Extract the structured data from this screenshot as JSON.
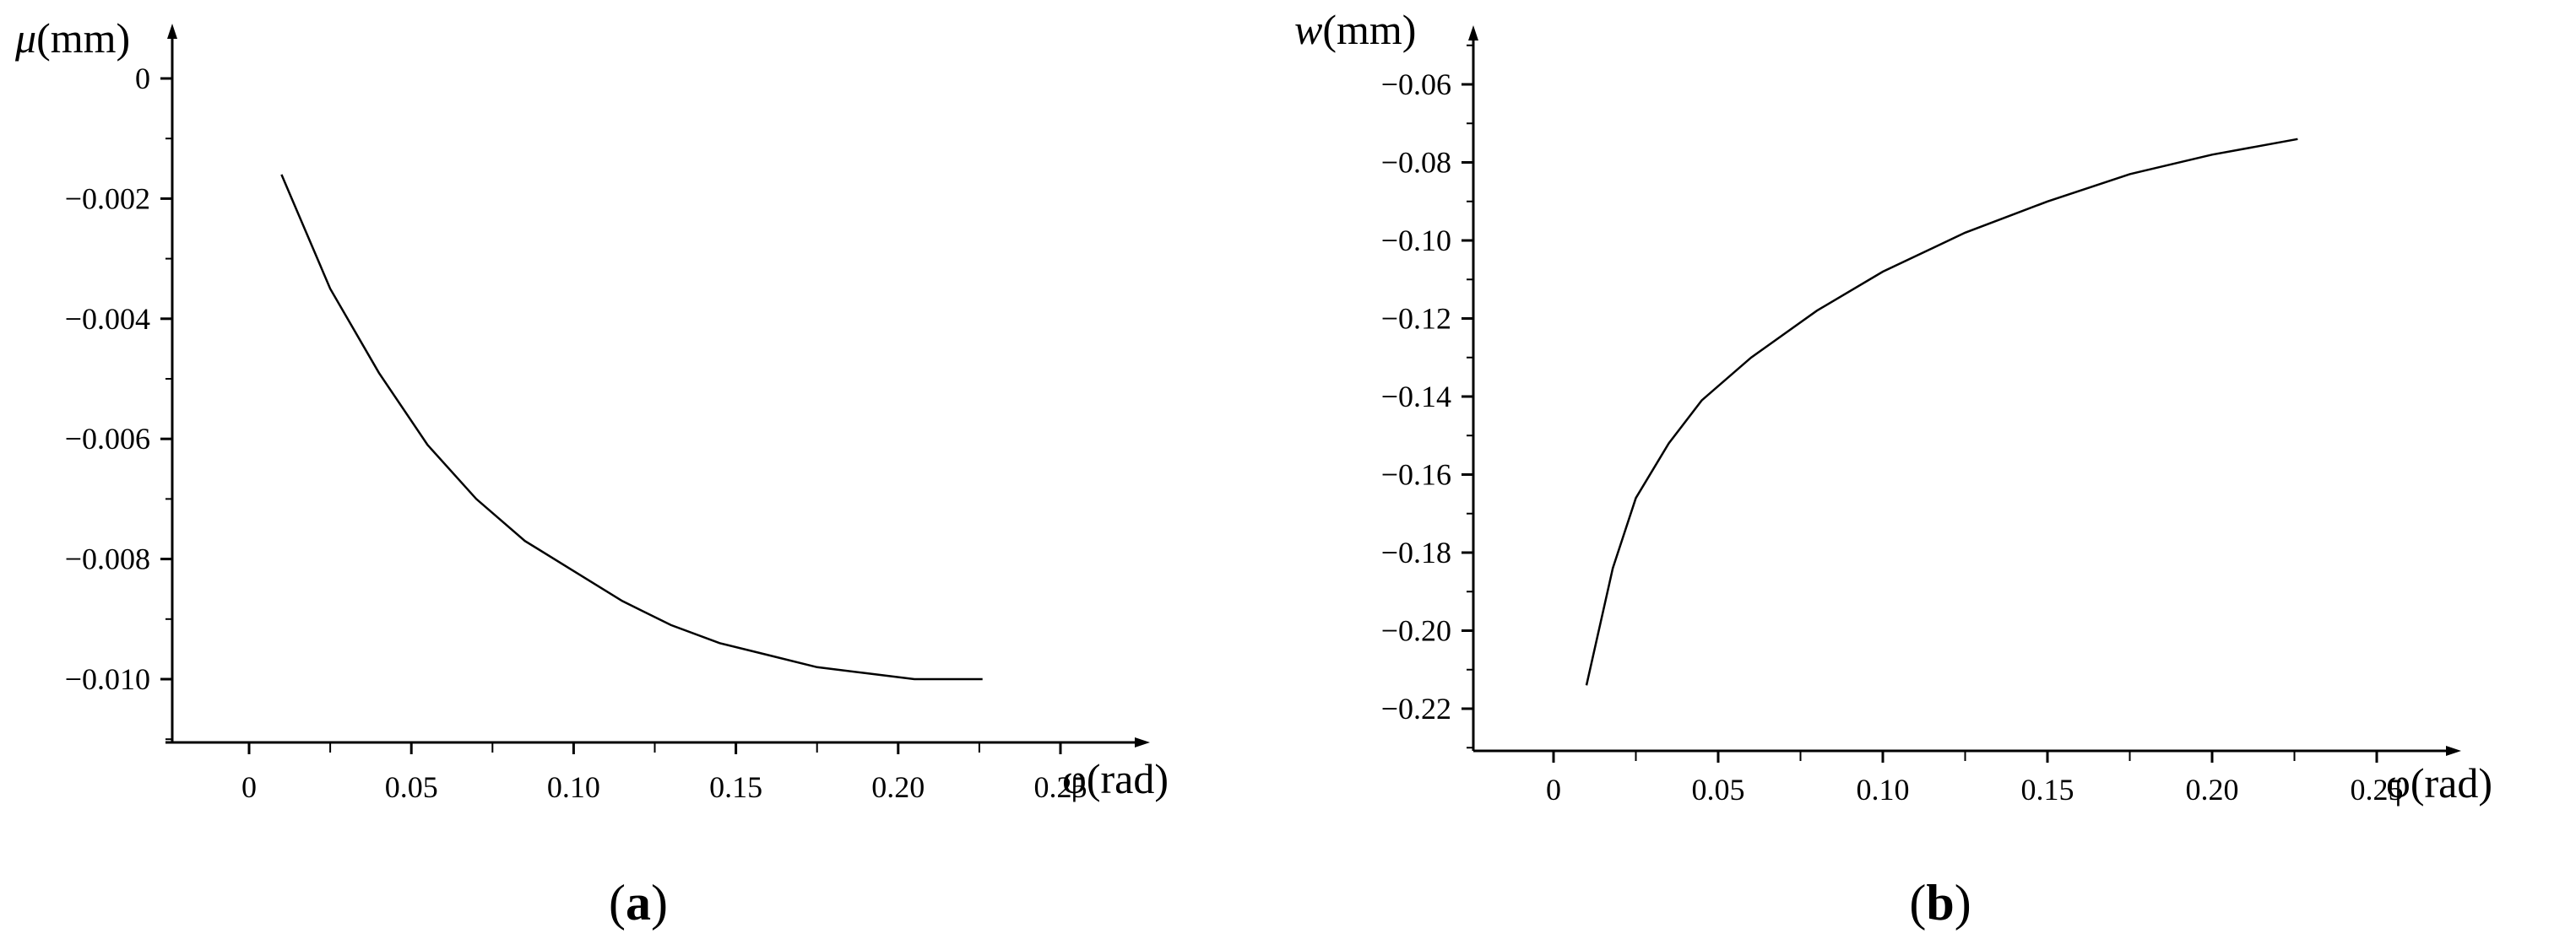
{
  "chart_data": [
    {
      "type": "line",
      "panel_label": "(a)",
      "panel_letter": "a",
      "ylabel_symbol": "μ",
      "ylabel_unit": "(mm)",
      "xlabel": "φ(rad)",
      "xlim": [
        -0.025,
        0.275
      ],
      "ylim": [
        -0.011,
        0.0008
      ],
      "x_ticks": [
        0,
        0.05,
        0.1,
        0.15,
        0.2,
        0.25
      ],
      "x_tick_labels": [
        "0",
        "0.05",
        "0.10",
        "0.15",
        "0.20",
        "0.25"
      ],
      "y_ticks": [
        0,
        -0.002,
        -0.004,
        -0.006,
        -0.008,
        -0.01
      ],
      "y_tick_labels": [
        "0",
        "−0.002",
        "−0.004",
        "−0.006",
        "−0.008",
        "−0.010"
      ],
      "y_minor_step": 0.001,
      "x_minor_step": 0.025,
      "series": [
        {
          "x": [
            0.01,
            0.025,
            0.04,
            0.055,
            0.07,
            0.085,
            0.1,
            0.115,
            0.13,
            0.145,
            0.16,
            0.175,
            0.19,
            0.205,
            0.226
          ],
          "y": [
            -0.0016,
            -0.0035,
            -0.0049,
            -0.0061,
            -0.007,
            -0.0077,
            -0.0082,
            -0.0087,
            -0.0091,
            -0.0094,
            -0.0096,
            -0.0098,
            -0.0099,
            -0.01,
            -0.01
          ]
        }
      ]
    },
    {
      "type": "line",
      "panel_label": "(b)",
      "panel_letter": "b",
      "ylabel_symbol": "w",
      "ylabel_unit": "(mm)",
      "xlabel": "φ(rad)",
      "xlim": [
        -0.025,
        0.275
      ],
      "ylim": [
        -0.23,
        -0.045
      ],
      "x_ticks": [
        0,
        0.05,
        0.1,
        0.15,
        0.2,
        0.25
      ],
      "x_tick_labels": [
        "0",
        "0.05",
        "0.10",
        "0.15",
        "0.20",
        "0.25"
      ],
      "y_ticks": [
        -0.06,
        -0.08,
        -0.1,
        -0.12,
        -0.14,
        -0.16,
        -0.18,
        -0.2,
        -0.22
      ],
      "y_tick_labels": [
        "−0.06",
        "−0.08",
        "−0.10",
        "−0.12",
        "−0.14",
        "−0.16",
        "−0.18",
        "−0.20",
        "−0.22"
      ],
      "y_minor_step": 0.01,
      "x_minor_step": 0.025,
      "series": [
        {
          "x": [
            0.01,
            0.018,
            0.025,
            0.035,
            0.045,
            0.06,
            0.08,
            0.1,
            0.125,
            0.15,
            0.175,
            0.2,
            0.226
          ],
          "y": [
            -0.214,
            -0.184,
            -0.166,
            -0.152,
            -0.141,
            -0.13,
            -0.118,
            -0.108,
            -0.098,
            -0.09,
            -0.083,
            -0.078,
            -0.074
          ]
        }
      ]
    }
  ]
}
